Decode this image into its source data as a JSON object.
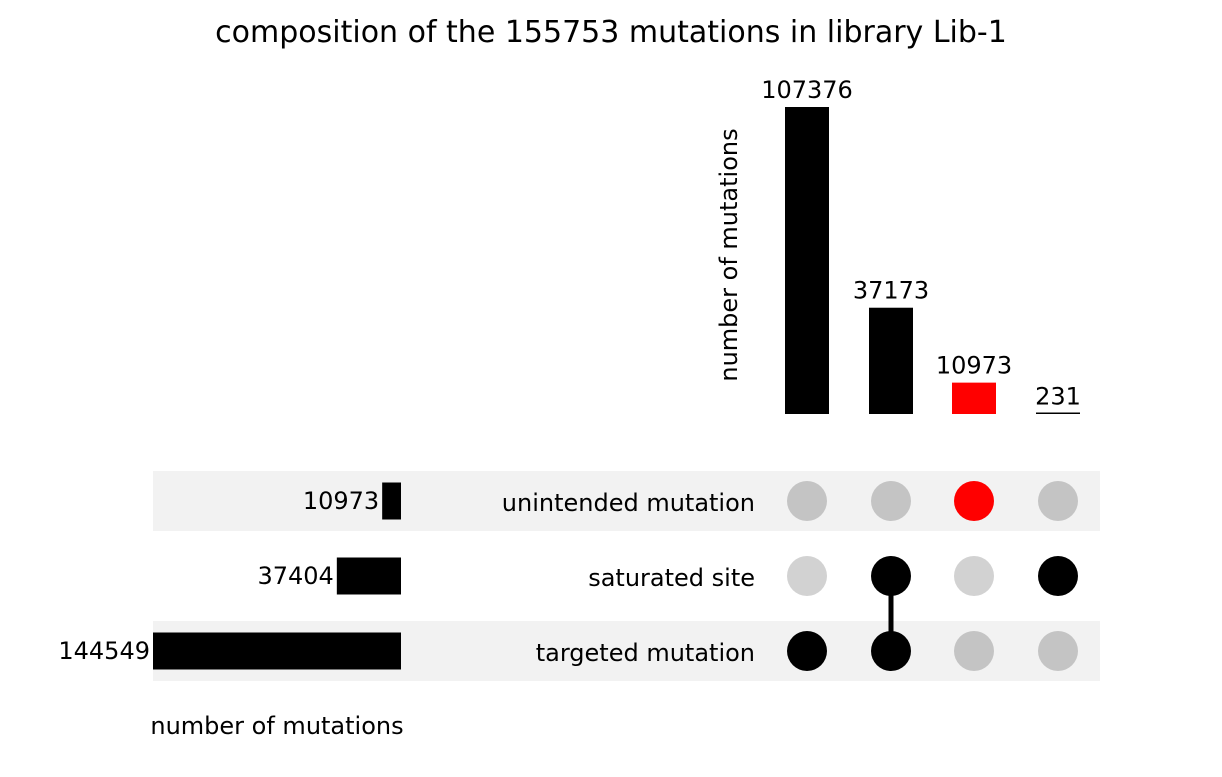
{
  "chart_data": {
    "type": "upset",
    "title": "composition of the 155753 mutations in library Lib-1",
    "intersection_ylabel": "number of mutations",
    "set_size_xlabel": "number of mutations",
    "sets": [
      {
        "name": "unintended mutation",
        "size": 10973,
        "size_label": "10973"
      },
      {
        "name": "saturated site",
        "size": 37404,
        "size_label": "37404"
      },
      {
        "name": "targeted mutation",
        "size": 144549,
        "size_label": "144549"
      }
    ],
    "intersections": [
      {
        "members": [
          "targeted mutation"
        ],
        "count": 107376,
        "label": "107376",
        "highlight": false
      },
      {
        "members": [
          "saturated site",
          "targeted mutation"
        ],
        "count": 37173,
        "label": "37173",
        "highlight": false
      },
      {
        "members": [
          "unintended mutation"
        ],
        "count": 10973,
        "label": "10973",
        "highlight": true
      },
      {
        "members": [
          "saturated site"
        ],
        "count": 231,
        "label": "231",
        "highlight": false
      }
    ],
    "colors": {
      "bar": "#000000",
      "highlight": "#ff0000",
      "dot_active": "#000000",
      "dot_inactive_shaded_row": "#c4c4c4",
      "dot_inactive_plain_row": "#d2d2d2",
      "row_shade": "#f2f2f2"
    }
  }
}
